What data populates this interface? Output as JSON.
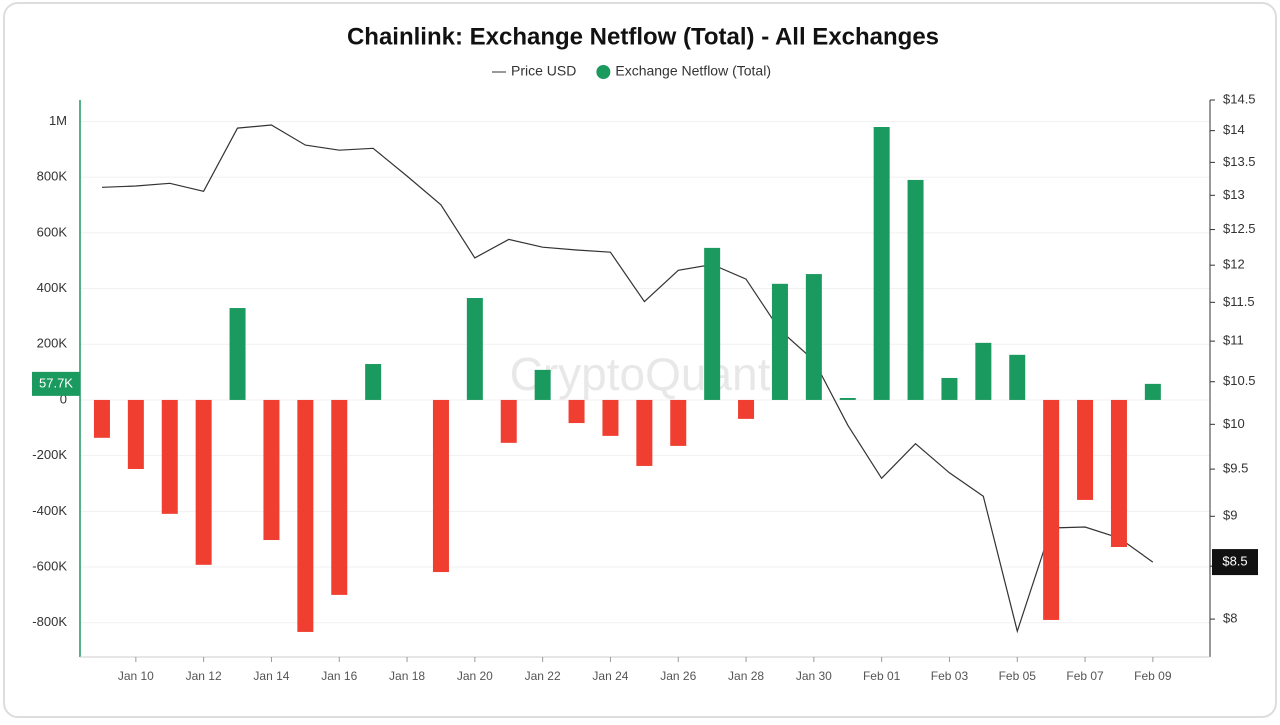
{
  "chart_data": {
    "type": "bar",
    "title": "Chainlink: Exchange Netflow (Total) - All Exchanges",
    "watermark": "CryptoQuant",
    "categories": [
      null,
      "Jan 10",
      null,
      "Jan 12",
      null,
      "Jan 14",
      null,
      "Jan 16",
      null,
      "Jan 18",
      null,
      "Jan 20",
      null,
      "Jan 22",
      null,
      "Jan 24",
      null,
      "Jan 26",
      null,
      "Jan 28",
      null,
      "Jan 30",
      null,
      "Feb 01",
      null,
      "Feb 03",
      null,
      "Feb 05",
      null,
      "Feb 07",
      null,
      "Feb 09"
    ],
    "series": [
      {
        "name": "Price USD",
        "type": "line",
        "axis": "y2",
        "color": "#333333",
        "values": [
          13.12,
          13.14,
          13.18,
          13.06,
          14.04,
          14.09,
          13.77,
          13.69,
          13.72,
          13.29,
          12.86,
          12.1,
          12.36,
          12.25,
          12.21,
          12.18,
          11.51,
          11.93,
          12.01,
          11.81,
          11.14,
          10.76,
          9.99,
          9.4,
          9.78,
          9.46,
          9.21,
          7.89,
          8.88,
          8.89,
          8.78,
          8.54
        ],
        "value_labels": [
          null,
          null,
          null,
          null,
          null,
          null,
          null,
          null,
          null,
          null,
          null,
          null,
          null,
          null,
          null,
          null,
          null,
          null,
          null,
          null,
          null,
          null,
          null,
          null,
          null,
          null,
          null,
          null,
          null,
          null,
          null,
          "$8.5"
        ]
      },
      {
        "name": "Exchange Netflow (Total)",
        "type": "bar",
        "color": "#1a9a5e",
        "negative_color": "#f03e31",
        "values": [
          -136000,
          -248000,
          -409000,
          -592000,
          330000,
          -503000,
          -833000,
          -700000,
          129000,
          null,
          -618000,
          366000,
          -154000,
          108000,
          -83000,
          -129000,
          -237000,
          -165000,
          546000,
          -68000,
          417000,
          452000,
          7000,
          980000,
          790000,
          79000,
          205000,
          162000,
          -790000,
          -359000,
          -528000,
          57700
        ],
        "value_labels": [
          null,
          null,
          null,
          null,
          null,
          null,
          null,
          null,
          null,
          null,
          null,
          null,
          null,
          null,
          null,
          null,
          null,
          null,
          null,
          null,
          null,
          null,
          null,
          null,
          null,
          null,
          null,
          null,
          null,
          null,
          null,
          "57.7K"
        ]
      }
    ],
    "ylim": [
      -923000,
      1077000
    ],
    "yticks": [
      {
        "value": -800000,
        "label": "-800K"
      },
      {
        "value": -600000,
        "label": "-600K"
      },
      {
        "value": -400000,
        "label": "-400K"
      },
      {
        "value": -200000,
        "label": "-200K"
      },
      0,
      {
        "value": 200000,
        "label": "200K"
      },
      {
        "value": 400000,
        "label": "400K"
      },
      {
        "value": 600000,
        "label": "600K"
      },
      {
        "value": 800000,
        "label": "800K"
      },
      {
        "value": 1000000,
        "label": "1M"
      }
    ],
    "y2lim": [
      7.66,
      14.5
    ],
    "y2scale": "log",
    "y2ticks": [
      {
        "value": 8,
        "label": "$8"
      },
      {
        "value": 8.5,
        "label": "$8.5"
      },
      {
        "value": 9,
        "label": "$9"
      },
      {
        "value": 9.5,
        "label": "$9.5"
      },
      {
        "value": 10,
        "label": "$10"
      },
      {
        "value": 10.5,
        "label": "$10.5"
      },
      {
        "value": 11,
        "label": "$11"
      },
      {
        "value": 11.5,
        "label": "$11.5"
      },
      {
        "value": 12,
        "label": "$12"
      },
      {
        "value": 12.5,
        "label": "$12.5"
      },
      {
        "value": 13,
        "label": "$13"
      },
      {
        "value": 13.5,
        "label": "$13.5"
      },
      {
        "value": 14,
        "label": "$14"
      },
      {
        "value": 14.5,
        "label": "$14.5"
      }
    ],
    "grid": true
  }
}
